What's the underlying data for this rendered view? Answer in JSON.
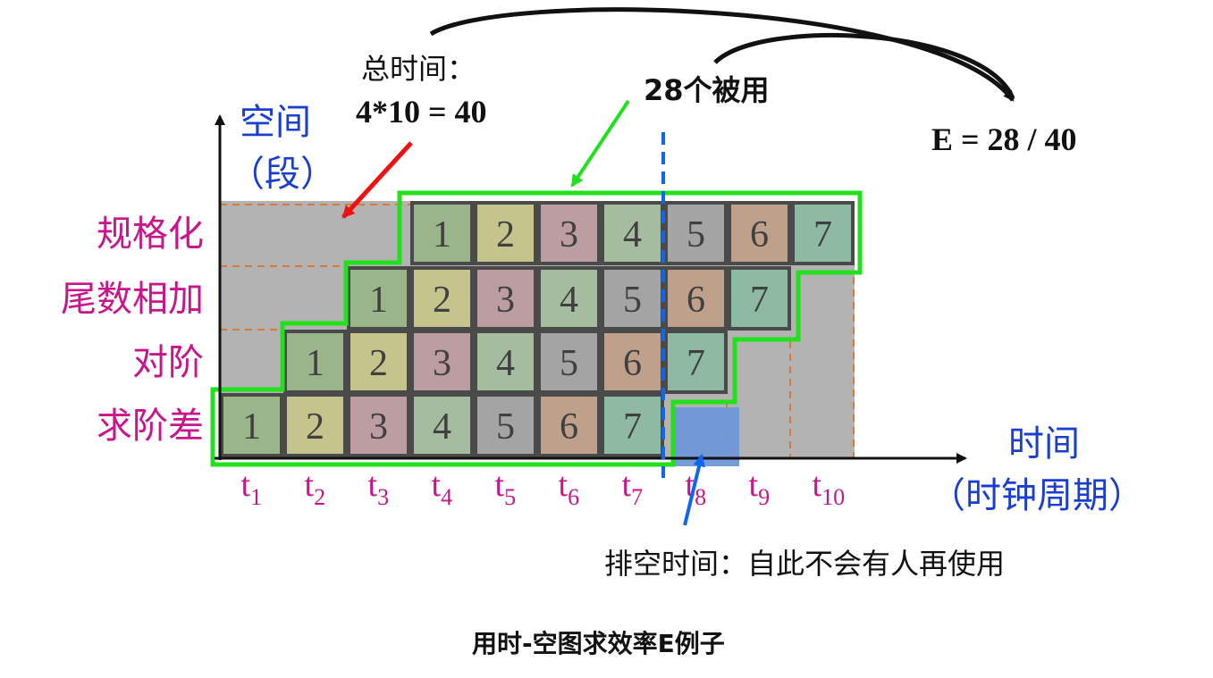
{
  "axis": {
    "y_title_line1": "空间",
    "y_title_line2": "（段）",
    "x_title_line1": "时间",
    "x_title_line2": "（时钟周期）"
  },
  "stages": [
    "规格化",
    "尾数相加",
    "对阶",
    "求阶差"
  ],
  "ticks": [
    {
      "base": "t",
      "sub": "1"
    },
    {
      "base": "t",
      "sub": "2"
    },
    {
      "base": "t",
      "sub": "3"
    },
    {
      "base": "t",
      "sub": "4"
    },
    {
      "base": "t",
      "sub": "5"
    },
    {
      "base": "t",
      "sub": "6"
    },
    {
      "base": "t",
      "sub": "7"
    },
    {
      "base": "t",
      "sub": "8"
    },
    {
      "base": "t",
      "sub": "9"
    },
    {
      "base": "t",
      "sub": "10"
    }
  ],
  "tasks": [
    "1",
    "2",
    "3",
    "4",
    "5",
    "6",
    "7"
  ],
  "annotations": {
    "total_time_label": "总时间：",
    "total_time_formula": "4*10 = 40",
    "used_label": "28个被用",
    "efficiency": "E = 28 / 40",
    "drain_time": "排空时间：自此不会有人再使用"
  },
  "caption": "用时-空图求效率E例子",
  "colors": {
    "task_fills": [
      "#9bb58a",
      "#c6c48d",
      "#bc9da2",
      "#a6bc9f",
      "#a4a4a4",
      "#bfa08b",
      "#8ebaa4"
    ],
    "idle_gray": "#b3b3b3",
    "used_outline": "#22e01c",
    "arrow_red": "#ee1111",
    "arrow_blue": "#1166ee",
    "drain_fill": "#6f97d8",
    "dashed_orange": "#d97a3a",
    "stage_label": "#c8158c",
    "axis_title": "#1a3fd0"
  }
}
